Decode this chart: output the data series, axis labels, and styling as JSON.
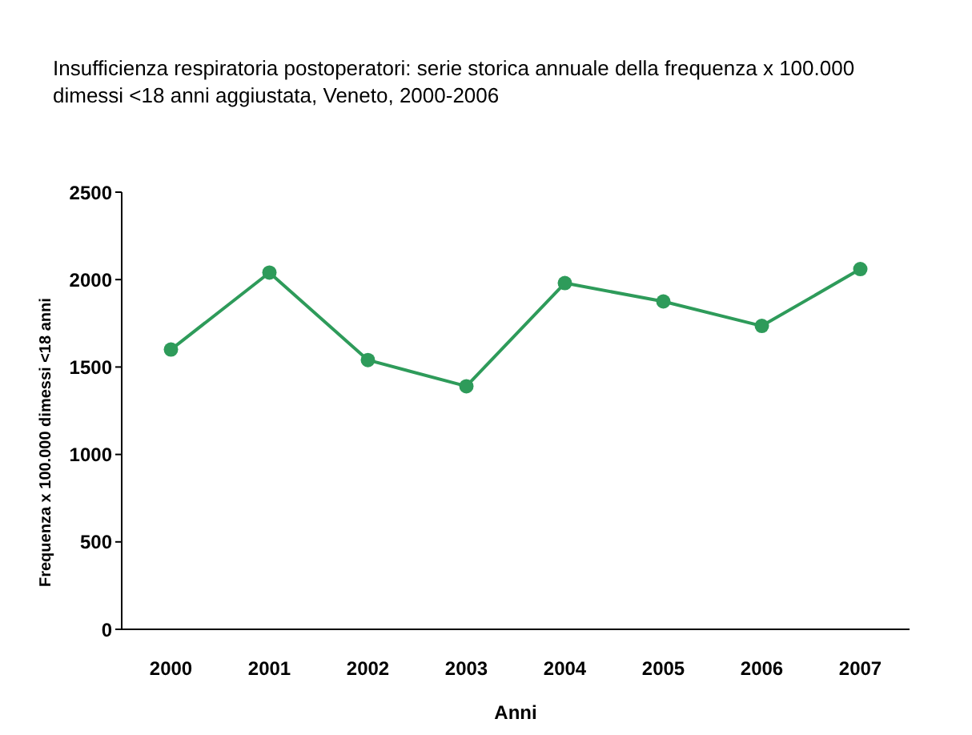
{
  "chart_data": {
    "type": "line",
    "title": "Insufficienza respiratoria postoperatori: serie storica annuale della frequenza x 100.000 dimessi <18 anni aggiustata, Veneto, 2000-2006",
    "xlabel": "Anni",
    "ylabel": "Frequenza x 100.000 dimessi <18 anni",
    "categories": [
      "2000",
      "2001",
      "2002",
      "2003",
      "2004",
      "2005",
      "2006",
      "2007"
    ],
    "series": [
      {
        "color": "#2e9b5a",
        "values": [
          1600,
          2040,
          1540,
          1390,
          1980,
          1875,
          1735,
          2060
        ]
      }
    ],
    "ylim": [
      0,
      2500
    ],
    "yticks": [
      0,
      500,
      1000,
      1500,
      2000,
      2500
    ],
    "grid": false,
    "legend": false,
    "marker": "circle",
    "line_style": "solid"
  }
}
